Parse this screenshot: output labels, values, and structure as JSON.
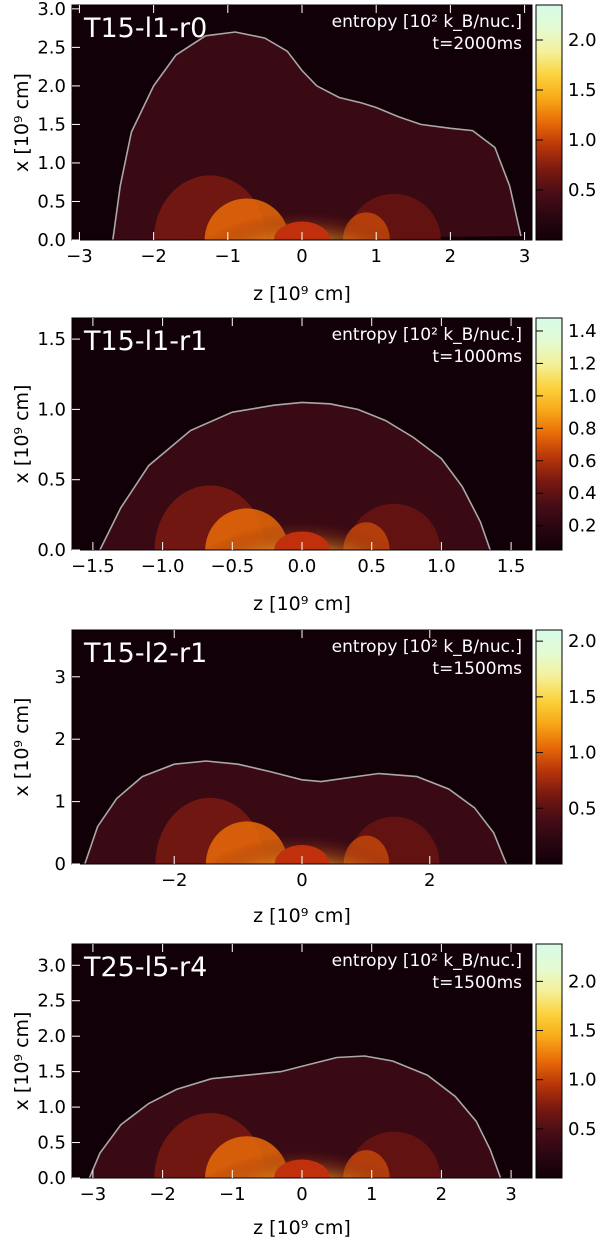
{
  "colorbar": {
    "stops": [
      "#120008",
      "#2a0612",
      "#4a0d16",
      "#7a1a10",
      "#b8360a",
      "#e86a08",
      "#f7a818",
      "#fbd23c",
      "#f4f09a",
      "#e4fbd2",
      "#d6fbe8"
    ]
  },
  "chart_data": [
    {
      "type": "heatmap",
      "title": "T15-l1-r0",
      "quantity_label": "entropy [10² k_B/nuc.]",
      "time_label": "t=2000ms",
      "xlabel": "z [10⁹ cm]",
      "ylabel": "x [10⁹ cm]",
      "xlim": [
        -3.1,
        3.1
      ],
      "ylim": [
        0.0,
        3.05
      ],
      "xticks": [
        -3,
        -2,
        -1,
        0,
        1,
        2,
        3
      ],
      "xtick_labels": [
        "−3",
        "−2",
        "−1",
        "0",
        "1",
        "2",
        "3"
      ],
      "yticks": [
        0.0,
        0.5,
        1.0,
        1.5,
        2.0,
        2.5,
        3.0
      ],
      "ytick_labels": [
        "0.0",
        "0.5",
        "1.0",
        "1.5",
        "2.0",
        "2.5",
        "3.0"
      ],
      "colorbar_range": [
        0.0,
        2.35
      ],
      "colorbar_ticks": [
        0.5,
        1.0,
        1.5,
        2.0
      ],
      "colorbar_tick_labels": [
        "0.5",
        "1.0",
        "1.5",
        "2.0"
      ],
      "shock_radius": {
        "z": [
          -2.55,
          -2.45,
          -2.3,
          -2.0,
          -1.7,
          -1.3,
          -0.9,
          -0.5,
          -0.2,
          0.0,
          0.2,
          0.5,
          0.8,
          1.0,
          1.3,
          1.6,
          2.0,
          2.3,
          2.6,
          2.8,
          2.95
        ],
        "x": [
          0.0,
          0.7,
          1.4,
          2.0,
          2.4,
          2.65,
          2.7,
          2.62,
          2.45,
          2.2,
          2.0,
          1.85,
          1.78,
          1.72,
          1.6,
          1.5,
          1.45,
          1.42,
          1.2,
          0.7,
          0.05
        ]
      }
    },
    {
      "type": "heatmap",
      "title": "T15-l1-r1",
      "quantity_label": "entropy [10² k_B/nuc.]",
      "time_label": "t=1000ms",
      "xlabel": "z [10⁹ cm]",
      "ylabel": "x [10⁹ cm]",
      "xlim": [
        -1.65,
        1.65
      ],
      "ylim": [
        0.0,
        1.65
      ],
      "xticks": [
        -1.5,
        -1.0,
        -0.5,
        0.0,
        0.5,
        1.0,
        1.5
      ],
      "xtick_labels": [
        "−1.5",
        "−1.0",
        "−0.5",
        "0.0",
        "0.5",
        "1.0",
        "1.5"
      ],
      "yticks": [
        0.0,
        0.5,
        1.0,
        1.5
      ],
      "ytick_labels": [
        "0.0",
        "0.5",
        "1.0",
        "1.5"
      ],
      "colorbar_range": [
        0.05,
        1.48
      ],
      "colorbar_ticks": [
        0.2,
        0.4,
        0.6,
        0.8,
        1.0,
        1.2,
        1.4
      ],
      "colorbar_tick_labels": [
        "0.2",
        "0.4",
        "0.6",
        "0.8",
        "1.0",
        "1.2",
        "1.4"
      ],
      "shock_radius": {
        "z": [
          -1.45,
          -1.3,
          -1.1,
          -0.8,
          -0.5,
          -0.2,
          0.0,
          0.2,
          0.4,
          0.6,
          0.8,
          1.0,
          1.15,
          1.28,
          1.35
        ],
        "x": [
          0.0,
          0.3,
          0.6,
          0.85,
          0.98,
          1.03,
          1.05,
          1.04,
          1.0,
          0.92,
          0.8,
          0.65,
          0.45,
          0.2,
          0.0
        ]
      }
    },
    {
      "type": "heatmap",
      "title": "T15-l2-r1",
      "quantity_label": "entropy [10² k_B/nuc.]",
      "time_label": "t=1500ms",
      "xlabel": "z [10⁹ cm]",
      "ylabel": "x [10⁹ cm]",
      "xlim": [
        -3.6,
        3.6
      ],
      "ylim": [
        0.0,
        3.75
      ],
      "xticks": [
        -2,
        0,
        2
      ],
      "xtick_labels": [
        "−2",
        "0",
        "2"
      ],
      "yticks": [
        0,
        1,
        2,
        3
      ],
      "ytick_labels": [
        "0",
        "1",
        "2",
        "3"
      ],
      "colorbar_range": [
        0.0,
        2.1
      ],
      "colorbar_ticks": [
        0.5,
        1.0,
        1.5,
        2.0
      ],
      "colorbar_tick_labels": [
        "0.5",
        "1.0",
        "1.5",
        "2.0"
      ],
      "shock_radius": {
        "z": [
          -3.4,
          -3.2,
          -2.9,
          -2.5,
          -2.0,
          -1.5,
          -1.0,
          -0.5,
          0.0,
          0.3,
          0.7,
          1.2,
          1.8,
          2.3,
          2.7,
          3.0,
          3.2
        ],
        "x": [
          0.0,
          0.6,
          1.05,
          1.4,
          1.6,
          1.65,
          1.6,
          1.48,
          1.35,
          1.32,
          1.38,
          1.45,
          1.4,
          1.2,
          0.9,
          0.5,
          0.0
        ]
      }
    },
    {
      "type": "heatmap",
      "title": "T25-l5-r4",
      "quantity_label": "entropy [10² k_B/nuc.]",
      "time_label": "t=1500ms",
      "xlabel": "z [10⁹ cm]",
      "ylabel": "x [10⁹ cm]",
      "xlim": [
        -3.3,
        3.3
      ],
      "ylim": [
        0.0,
        3.3
      ],
      "xticks": [
        -3,
        -2,
        -1,
        0,
        1,
        2,
        3
      ],
      "xtick_labels": [
        "−3",
        "−2",
        "−1",
        "0",
        "1",
        "2",
        "3"
      ],
      "yticks": [
        0.0,
        0.5,
        1.0,
        1.5,
        2.0,
        2.5,
        3.0
      ],
      "ytick_labels": [
        "0.0",
        "0.5",
        "1.0",
        "1.5",
        "2.0",
        "2.5",
        "3.0"
      ],
      "colorbar_range": [
        0.0,
        2.38
      ],
      "colorbar_ticks": [
        0.5,
        1.0,
        1.5,
        2.0
      ],
      "colorbar_tick_labels": [
        "0.5",
        "1.0",
        "1.5",
        "2.0"
      ],
      "shock_radius": {
        "z": [
          -3.05,
          -2.9,
          -2.6,
          -2.2,
          -1.8,
          -1.3,
          -0.8,
          -0.3,
          0.1,
          0.5,
          0.9,
          1.3,
          1.8,
          2.2,
          2.5,
          2.7,
          2.85
        ],
        "x": [
          0.0,
          0.35,
          0.75,
          1.05,
          1.25,
          1.4,
          1.45,
          1.5,
          1.6,
          1.7,
          1.72,
          1.65,
          1.45,
          1.15,
          0.8,
          0.4,
          0.0
        ]
      }
    }
  ]
}
